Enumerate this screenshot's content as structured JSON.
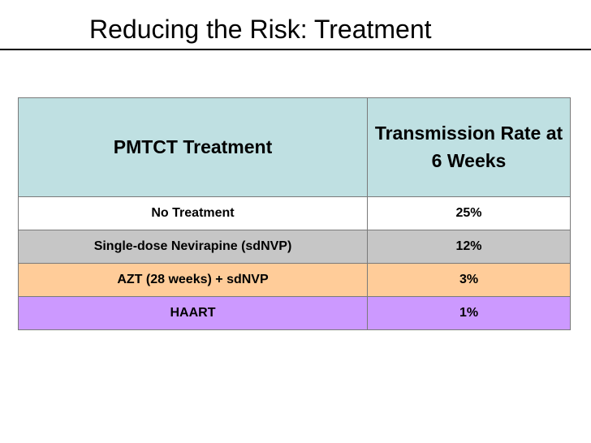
{
  "slide": {
    "title": "Reducing the Risk: Treatment"
  },
  "table": {
    "headers": [
      "PMTCT Treatment",
      "Transmission Rate at 6 Weeks"
    ],
    "header_color": "#bfe0e2",
    "rows": [
      {
        "treatment": "No Treatment",
        "rate": "25%",
        "color": "#ffffff"
      },
      {
        "treatment": "Single-dose Nevirapine (sdNVP)",
        "rate": "12%",
        "color": "#c6c6c6"
      },
      {
        "treatment": "AZT (28 weeks) + sdNVP",
        "rate": "3%",
        "color": "#ffcc99"
      },
      {
        "treatment": "HAART",
        "rate": "1%",
        "color": "#cc99ff"
      }
    ]
  }
}
